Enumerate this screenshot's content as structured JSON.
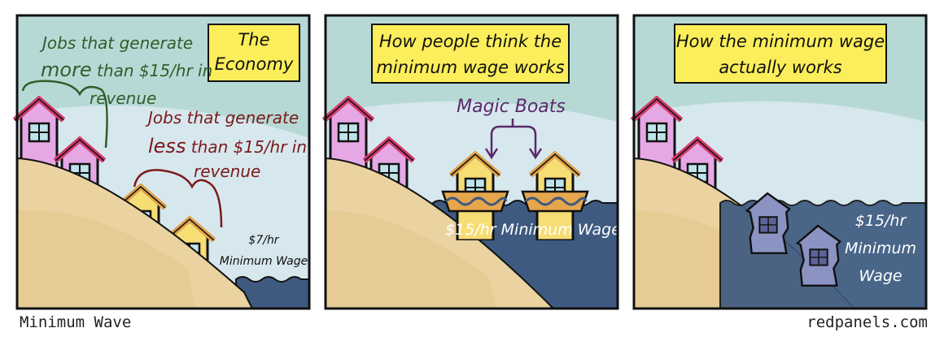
{
  "footer": {
    "title": "Minimum Wave",
    "site": "redpanels.com"
  },
  "panel1": {
    "caption_line1": "The",
    "caption_line2": "Economy",
    "green_line1": "Jobs that generate",
    "green_line2_strong": "more",
    "green_line2_rest": " than $15/hr in",
    "green_line3": "revenue",
    "red_line1": "Jobs that generate",
    "red_line2_strong": "less",
    "red_line2_rest": " than $15/hr in",
    "red_line3": "revenue",
    "wage_line1": "$7/hr",
    "wage_line2": "Minimum Wage"
  },
  "panel2": {
    "caption_line1": "How people think the",
    "caption_line2": "minimum wage works",
    "boats_label": "Magic Boats",
    "wage_label": "$15/hr Minimum Wage"
  },
  "panel3": {
    "caption_line1": "How the minimum wage",
    "caption_line2": "actually works",
    "wage_line1": "$15/hr",
    "wage_line2": "Minimum",
    "wage_line3": "Wage"
  },
  "colors": {
    "sky": "#b7d9d6",
    "sand": "#ead3a0",
    "water": "#3e5a80",
    "caption_bg": "#fbee5a",
    "pink_house": "#e5a8e5",
    "yellow_house": "#f6dd74"
  }
}
